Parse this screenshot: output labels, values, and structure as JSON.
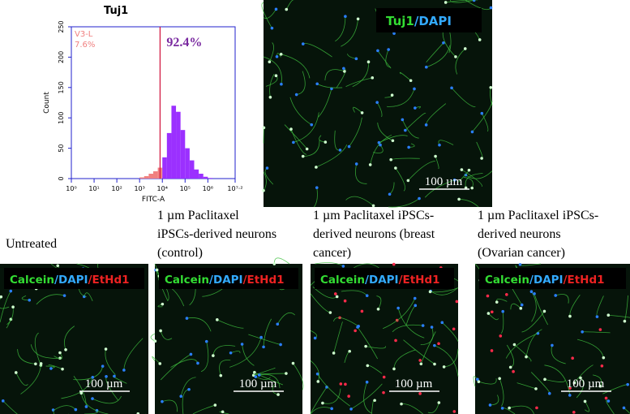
{
  "chart_data": {
    "type": "histogram",
    "title": "Tuj1",
    "x_label": "FITC-A",
    "y_label": "Count",
    "bins": [
      1000,
      1585,
      2512,
      3981,
      6310,
      10000,
      15849,
      25119,
      39811,
      63096,
      100000,
      158489,
      251189,
      398107,
      630957,
      1000000,
      1584893
    ],
    "values": [
      2,
      4,
      8,
      12,
      18,
      35,
      75,
      120,
      110,
      80,
      50,
      30,
      15,
      8,
      3,
      1
    ],
    "xscale": "log",
    "xlim": [
      1,
      15848932
    ],
    "ylim": [
      0,
      250
    ],
    "xticks": [
      {
        "value": 1,
        "label": "10⁰"
      },
      {
        "value": 10,
        "label": "10¹"
      },
      {
        "value": 100,
        "label": "10²"
      },
      {
        "value": 1000,
        "label": "10³"
      },
      {
        "value": 10000,
        "label": "10⁴"
      },
      {
        "value": 100000,
        "label": "10⁵"
      },
      {
        "value": 1000000,
        "label": "10⁶"
      },
      {
        "value": 15848932,
        "label": "10⁷·²"
      }
    ],
    "yticks": [
      0,
      50,
      100,
      150,
      200,
      250
    ],
    "gate": 7943,
    "gate_name": "V3-L",
    "gate_labels": [
      "7.6%",
      "92.4%"
    ],
    "colors": [
      "#f08080",
      "#9b30ff"
    ],
    "frame_color": "#2222cc"
  },
  "top_image": {
    "overlay": [
      {
        "text": "Tuj1",
        "color": "#33dd33"
      },
      {
        "text": "/",
        "color": "#33aaff"
      },
      {
        "text": "DAPI",
        "color": "#33aaff"
      }
    ],
    "scale_bar": "100 µm"
  },
  "panels": [
    {
      "caption": [
        "Untreated"
      ],
      "overlay": [
        {
          "text": "Calcein",
          "color": "#33dd33"
        },
        {
          "text": "/",
          "color": "#33aaff"
        },
        {
          "text": "DAPI",
          "color": "#33aaff"
        },
        {
          "text": "/",
          "color": "#ee2222"
        },
        {
          "text": "EtHd1",
          "color": "#ee2222"
        }
      ],
      "scale_bar": "100 µm"
    },
    {
      "caption": [
        "1 µm Paclitaxel",
        "iPSCs-derived neurons",
        "(control)"
      ],
      "overlay": [
        {
          "text": "Calcein",
          "color": "#33dd33"
        },
        {
          "text": "/",
          "color": "#33aaff"
        },
        {
          "text": "DAPI",
          "color": "#33aaff"
        },
        {
          "text": "/",
          "color": "#ee2222"
        },
        {
          "text": "EtHd1",
          "color": "#ee2222"
        }
      ],
      "scale_bar": "100 µm"
    },
    {
      "caption": [
        "1 µm Paclitaxel iPSCs-",
        "derived neurons (breast",
        "cancer)"
      ],
      "overlay": [
        {
          "text": "Calcein",
          "color": "#33dd33"
        },
        {
          "text": "/",
          "color": "#33aaff"
        },
        {
          "text": "DAPI",
          "color": "#33aaff"
        },
        {
          "text": "/",
          "color": "#ee2222"
        },
        {
          "text": "EtHd1",
          "color": "#ee2222"
        }
      ],
      "scale_bar": "100 µm"
    },
    {
      "caption": [
        "1 µm Paclitaxel iPSCs-",
        "derived neurons",
        "(Ovarian cancer)"
      ],
      "overlay": [
        {
          "text": "Calcein",
          "color": "#33dd33"
        },
        {
          "text": "/",
          "color": "#33aaff"
        },
        {
          "text": "DAPI",
          "color": "#33aaff"
        },
        {
          "text": "/",
          "color": "#ee2222"
        },
        {
          "text": "EtHd1",
          "color": "#ee2222"
        }
      ],
      "scale_bar": "100 µm"
    }
  ]
}
